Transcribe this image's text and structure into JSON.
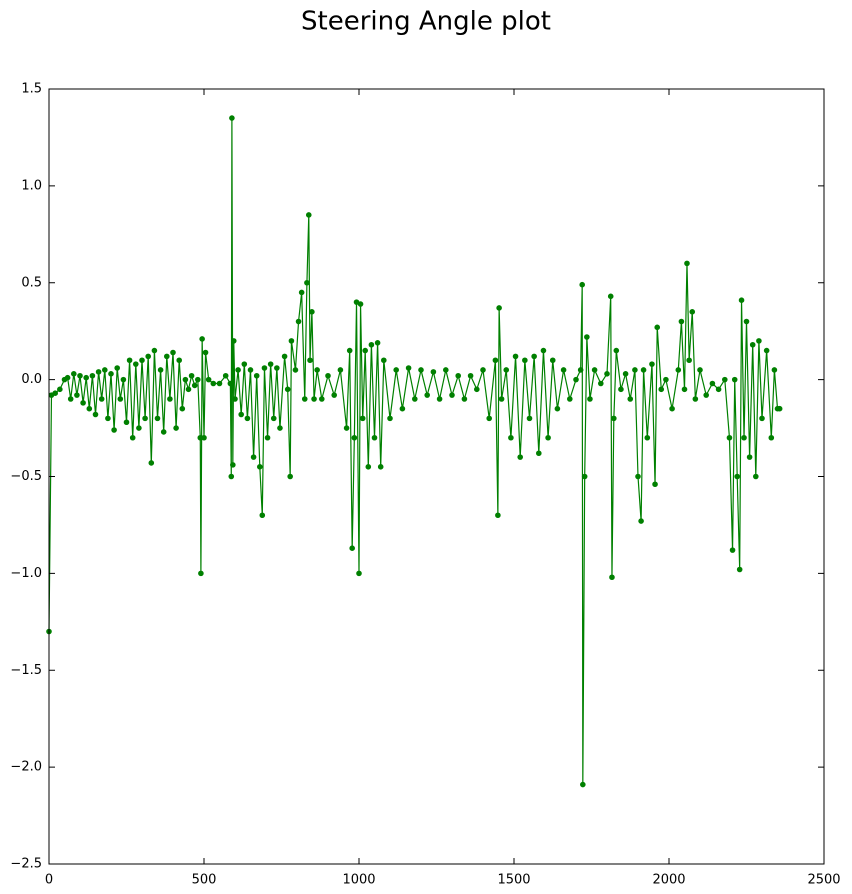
{
  "chart_data": {
    "type": "line",
    "title": "Steering Angle plot",
    "color": "#008000",
    "marker": true,
    "xlim": [
      0,
      2500
    ],
    "ylim": [
      -2.5,
      1.5
    ],
    "xticks": [
      0,
      500,
      1000,
      1500,
      2000,
      2500
    ],
    "yticks": [
      {
        "value": -2.5,
        "label": "−2.5"
      },
      {
        "value": -2.0,
        "label": "−2.0"
      },
      {
        "value": -1.5,
        "label": "−1.5"
      },
      {
        "value": -1.0,
        "label": "−1.0"
      },
      {
        "value": -0.5,
        "label": "−0.5"
      },
      {
        "value": 0.0,
        "label": "0.0"
      },
      0.5,
      {
        "value": 1.0,
        "label": "1.0"
      },
      1.5
    ],
    "x": [
      0,
      8,
      20,
      35,
      50,
      60,
      70,
      80,
      90,
      100,
      110,
      120,
      130,
      140,
      150,
      160,
      170,
      180,
      190,
      200,
      210,
      220,
      230,
      240,
      250,
      260,
      270,
      280,
      290,
      300,
      310,
      320,
      330,
      340,
      350,
      360,
      370,
      380,
      390,
      400,
      410,
      420,
      430,
      440,
      450,
      460,
      470,
      480,
      488,
      490,
      494,
      500,
      505,
      515,
      530,
      550,
      570,
      585,
      588,
      590,
      593,
      596,
      600,
      610,
      620,
      630,
      640,
      650,
      660,
      670,
      680,
      688,
      695,
      705,
      715,
      725,
      735,
      745,
      760,
      770,
      778,
      782,
      795,
      805,
      815,
      825,
      832,
      838,
      842,
      848,
      855,
      865,
      880,
      900,
      920,
      940,
      960,
      970,
      978,
      985,
      992,
      1000,
      1005,
      1012,
      1020,
      1030,
      1040,
      1050,
      1060,
      1070,
      1080,
      1100,
      1120,
      1140,
      1160,
      1180,
      1200,
      1220,
      1240,
      1260,
      1280,
      1300,
      1320,
      1340,
      1360,
      1380,
      1400,
      1420,
      1440,
      1448,
      1452,
      1460,
      1475,
      1490,
      1505,
      1520,
      1535,
      1550,
      1565,
      1580,
      1595,
      1610,
      1625,
      1640,
      1660,
      1680,
      1700,
      1715,
      1720,
      1722,
      1728,
      1735,
      1745,
      1760,
      1780,
      1800,
      1812,
      1816,
      1822,
      1830,
      1845,
      1860,
      1875,
      1890,
      1900,
      1910,
      1918,
      1930,
      1945,
      1955,
      1962,
      1975,
      1990,
      2010,
      2030,
      2040,
      2050,
      2058,
      2065,
      2075,
      2085,
      2100,
      2120,
      2140,
      2160,
      2180,
      2195,
      2205,
      2212,
      2220,
      2228,
      2234,
      2242,
      2250,
      2260,
      2270,
      2280,
      2290,
      2300,
      2315,
      2330,
      2340,
      2350,
      2357
    ],
    "values": [
      -1.3,
      -0.08,
      -0.07,
      -0.05,
      0.0,
      0.01,
      -0.1,
      0.03,
      -0.08,
      0.02,
      -0.12,
      0.01,
      -0.15,
      0.02,
      -0.18,
      0.04,
      -0.1,
      0.05,
      -0.2,
      0.03,
      -0.26,
      0.06,
      -0.1,
      0.0,
      -0.22,
      0.1,
      -0.3,
      0.08,
      -0.25,
      0.1,
      -0.2,
      0.12,
      -0.43,
      0.15,
      -0.2,
      0.05,
      -0.27,
      0.12,
      -0.1,
      0.14,
      -0.25,
      0.1,
      -0.15,
      0.0,
      -0.05,
      0.02,
      -0.03,
      0.0,
      -0.3,
      -1.0,
      0.21,
      -0.3,
      0.14,
      0.0,
      -0.02,
      -0.02,
      0.02,
      -0.02,
      -0.5,
      1.35,
      -0.44,
      0.2,
      -0.1,
      0.05,
      -0.18,
      0.08,
      -0.2,
      0.05,
      -0.4,
      0.02,
      -0.45,
      -0.7,
      0.06,
      -0.3,
      0.08,
      -0.2,
      0.06,
      -0.25,
      0.12,
      -0.05,
      -0.5,
      0.2,
      0.05,
      0.3,
      0.45,
      -0.1,
      0.5,
      0.85,
      0.1,
      0.35,
      -0.1,
      0.05,
      -0.1,
      0.02,
      -0.08,
      0.05,
      -0.25,
      0.15,
      -0.87,
      -0.3,
      0.4,
      -1.0,
      0.39,
      -0.2,
      0.15,
      -0.45,
      0.18,
      -0.3,
      0.19,
      -0.45,
      0.1,
      -0.2,
      0.05,
      -0.15,
      0.06,
      -0.1,
      0.05,
      -0.08,
      0.04,
      -0.1,
      0.05,
      -0.08,
      0.02,
      -0.1,
      0.02,
      -0.05,
      0.05,
      -0.2,
      0.1,
      -0.7,
      0.37,
      -0.1,
      0.05,
      -0.3,
      0.12,
      -0.4,
      0.1,
      -0.2,
      0.12,
      -0.38,
      0.15,
      -0.3,
      0.1,
      -0.15,
      0.05,
      -0.1,
      0.0,
      0.05,
      0.49,
      -2.09,
      -0.5,
      0.22,
      -0.1,
      0.05,
      -0.02,
      0.03,
      0.43,
      -1.02,
      -0.2,
      0.15,
      -0.05,
      0.03,
      -0.1,
      0.05,
      -0.5,
      -0.73,
      0.05,
      -0.3,
      0.08,
      -0.54,
      0.27,
      -0.05,
      0.0,
      -0.15,
      0.05,
      0.3,
      -0.05,
      0.6,
      0.1,
      0.35,
      -0.1,
      0.05,
      -0.08,
      -0.02,
      -0.05,
      0.0,
      -0.3,
      -0.88,
      0.0,
      -0.5,
      -0.98,
      0.41,
      -0.3,
      0.3,
      -0.4,
      0.18,
      -0.5,
      0.2,
      -0.2,
      0.15,
      -0.3,
      0.05,
      -0.15,
      -0.15
    ]
  }
}
